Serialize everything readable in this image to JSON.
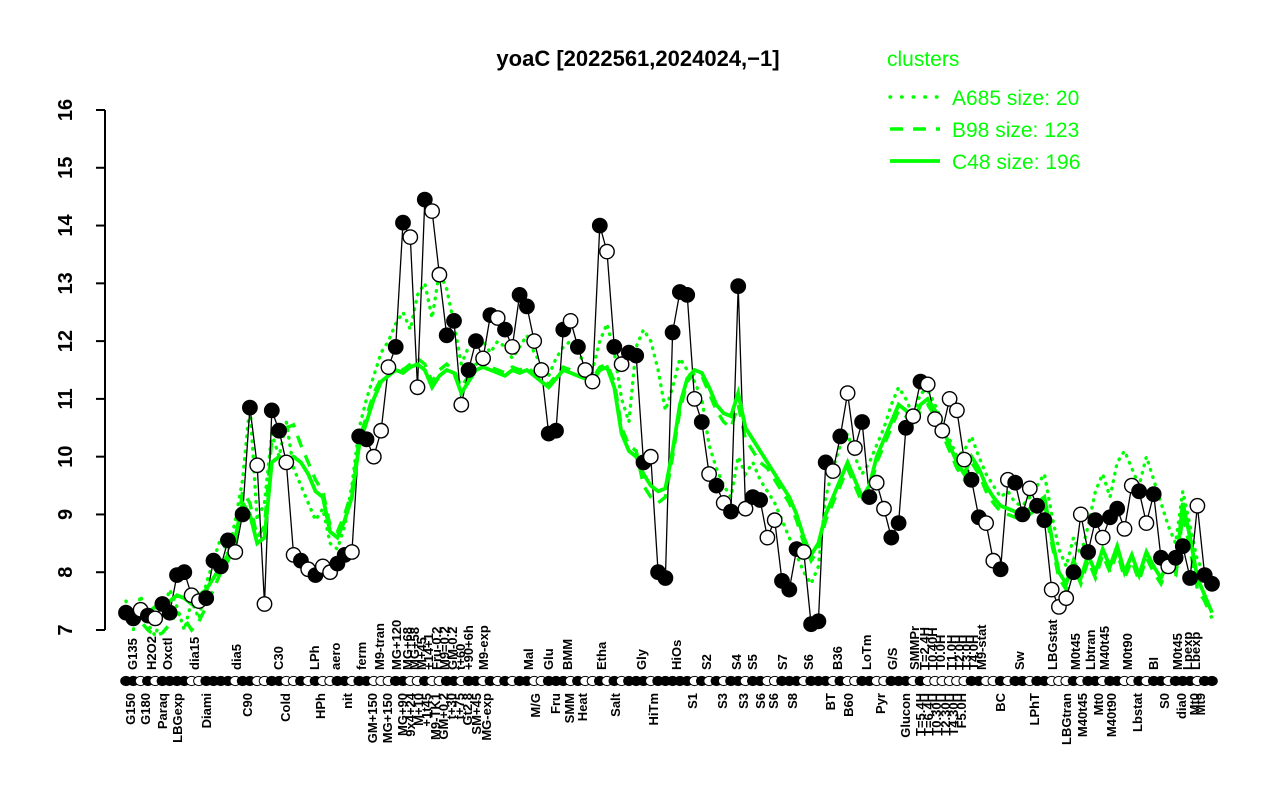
{
  "accent_color": "#00FF00",
  "foreground_color": "#000000",
  "chart_data": {
    "type": "line",
    "title": "yoaC [2022561,2024024,−1]",
    "ylim": [
      7,
      16
    ],
    "y_ticks": [
      7,
      8,
      9,
      10,
      11,
      12,
      13,
      14,
      15,
      16
    ],
    "grid": "off",
    "legend": {
      "title": "clusters",
      "position": "top-right",
      "color": "#00FF00",
      "entries": [
        {
          "label": "A685 size: 20",
          "style": "dotted"
        },
        {
          "label": "B98 size: 123",
          "style": "dashed"
        },
        {
          "label": "C48 size: 196",
          "style": "solid"
        }
      ]
    },
    "series": [
      {
        "name": "profile",
        "color": "#000000",
        "style": "line-with-markers",
        "marker_legend": "f=filled circle, o=open circle",
        "markers": [
          "ffofoff",
          "ffoof",
          "fffo",
          "ffooffoo",
          "fofooffo",
          "ffoo",
          "offo",
          "ofooff",
          "offo",
          "fofo",
          "ffoo",
          "ff",
          "fofo",
          "ofo",
          "foff",
          "foff",
          "fff",
          "ofofo",
          "f",
          "f",
          "offo",
          "offfo",
          "ff",
          "fofo",
          "off",
          "ooff",
          "fofo",
          "oooo",
          "offo",
          "of",
          "offo",
          "f",
          "f",
          "ooo",
          "foff",
          "offo",
          "ofof",
          "fof",
          "f",
          "f",
          "o",
          "f",
          "f"
        ],
        "values": [
          7.3,
          7.2,
          7.35,
          7.25,
          7.2,
          7.45,
          7.3,
          7.95,
          8.0,
          7.6,
          7.5,
          7.55,
          8.2,
          8.1,
          8.55,
          8.35,
          9.0,
          10.85,
          9.85,
          7.45,
          10.8,
          10.45,
          9.9,
          8.3,
          8.2,
          8.05,
          7.95,
          8.1,
          8.0,
          8.15,
          8.3,
          8.35,
          10.35,
          10.3,
          10.0,
          10.45,
          11.55,
          11.9,
          14.05,
          13.8,
          11.2,
          14.45,
          14.25,
          13.15,
          12.1,
          12.35,
          10.9,
          11.5,
          12.0,
          11.7,
          12.45,
          12.4,
          12.2,
          11.9,
          12.8,
          12.6,
          12.0,
          11.5,
          10.4,
          10.45,
          12.2,
          12.35,
          11.9,
          11.5,
          11.3,
          14.0,
          13.55,
          11.9,
          11.6,
          11.8,
          11.75,
          9.9,
          10.0,
          8.0,
          7.9,
          12.15,
          12.85,
          12.8,
          11.0,
          10.6,
          9.7,
          9.5,
          9.2,
          9.05,
          12.95,
          9.1,
          9.3,
          9.25,
          8.6,
          8.9,
          7.85,
          7.7,
          8.4,
          8.35,
          7.1,
          7.15,
          9.9,
          9.75,
          10.35,
          11.1,
          10.15,
          10.6,
          9.3,
          9.55,
          9.1,
          8.6,
          8.85,
          10.5,
          10.7,
          11.3,
          11.25,
          10.65,
          10.45,
          11.0,
          10.8,
          9.95,
          9.6,
          8.95,
          8.85,
          8.2,
          8.05,
          9.6,
          9.55,
          9.0,
          9.45,
          9.15,
          8.9,
          7.7,
          7.4,
          7.55,
          8.0,
          9.0,
          8.35,
          8.9,
          8.6,
          8.95,
          9.1,
          8.75,
          9.5,
          9.4,
          8.85,
          9.35,
          8.25,
          8.1,
          8.25,
          8.45,
          7.9,
          9.15,
          7.95,
          7.8
        ]
      },
      {
        "name": "A685",
        "color": "#00FF00",
        "style": "dotted",
        "values": [
          7.5,
          7.0,
          7.6,
          7.1,
          6.9,
          7.3,
          7.7,
          7.4,
          7.0,
          7.5,
          7.2,
          7.8,
          8.2,
          8.6,
          8.3,
          8.9,
          9.6,
          10.9,
          8.9,
          9.2,
          10.4,
          10.0,
          10.6,
          9.8,
          9.5,
          9.2,
          8.9,
          9.1,
          8.5,
          8.4,
          8.8,
          9.5,
          10.5,
          11.0,
          11.4,
          11.8,
          12.0,
          12.3,
          12.5,
          12.2,
          12.8,
          13.0,
          12.4,
          13.2,
          12.9,
          12.3,
          11.6,
          11.9,
          12.1,
          12.0,
          11.8,
          12.0,
          11.9,
          11.7,
          11.9,
          12.1,
          11.8,
          11.6,
          11.4,
          11.7,
          11.9,
          12.0,
          11.8,
          11.6,
          11.5,
          12.0,
          12.3,
          11.8,
          11.0,
          10.6,
          11.9,
          12.2,
          12.0,
          11.5,
          10.8,
          11.2,
          11.7,
          11.5,
          11.3,
          11.0,
          10.2,
          9.8,
          9.5,
          9.3,
          10.0,
          9.7,
          9.9,
          9.6,
          9.4,
          9.2,
          8.9,
          8.6,
          8.3,
          8.0,
          7.8,
          8.1,
          9.3,
          9.8,
          10.2,
          10.4,
          10.0,
          9.7,
          9.9,
          10.2,
          10.5,
          10.9,
          11.2,
          11.0,
          10.7,
          11.1,
          11.15,
          10.9,
          10.6,
          10.3,
          10.0,
          10.1,
          10.35,
          10.0,
          9.7,
          9.5,
          9.3,
          9.4,
          9.2,
          9.15,
          9.3,
          9.5,
          9.7,
          9.0,
          8.4,
          8.1,
          8.6,
          8.3,
          8.8,
          9.4,
          9.7,
          9.3,
          9.9,
          10.1,
          9.8,
          9.5,
          10.0,
          9.6,
          9.2,
          8.8,
          8.5,
          9.4,
          8.8,
          8.2,
          8.0,
          7.8
        ]
      },
      {
        "name": "B98",
        "color": "#00FF00",
        "style": "dashed",
        "values": [
          7.2,
          7.1,
          7.15,
          7.0,
          6.9,
          6.95,
          7.1,
          7.3,
          7.2,
          7.0,
          7.15,
          7.4,
          7.7,
          8.0,
          8.2,
          8.5,
          9.4,
          9.2,
          8.6,
          8.8,
          10.3,
          10.6,
          10.5,
          10.55,
          10.2,
          9.9,
          9.6,
          9.4,
          8.8,
          8.7,
          9.0,
          9.4,
          10.3,
          10.7,
          11.1,
          11.35,
          11.5,
          11.6,
          11.5,
          11.6,
          11.7,
          11.6,
          11.3,
          11.5,
          11.6,
          11.5,
          11.2,
          11.4,
          11.6,
          11.65,
          11.55,
          11.5,
          11.45,
          11.55,
          11.5,
          11.55,
          11.45,
          11.35,
          11.25,
          11.4,
          11.55,
          11.5,
          11.45,
          11.4,
          11.35,
          11.55,
          11.6,
          11.3,
          10.5,
          10.2,
          10.1,
          9.5,
          9.3,
          9.2,
          9.3,
          10.0,
          10.8,
          11.3,
          11.45,
          11.4,
          11.1,
          10.8,
          10.6,
          10.5,
          10.9,
          10.3,
          10.1,
          9.9,
          9.8,
          9.6,
          9.4,
          9.2,
          8.9,
          8.5,
          8.2,
          8.4,
          8.9,
          9.2,
          9.5,
          9.8,
          9.5,
          9.2,
          9.4,
          9.9,
          10.2,
          10.5,
          10.8,
          10.7,
          10.5,
          10.8,
          10.9,
          10.7,
          10.4,
          10.1,
          9.8,
          9.6,
          9.9,
          9.7,
          9.4,
          9.2,
          9.05,
          9.0,
          8.95,
          8.9,
          9.0,
          9.1,
          9.2,
          8.5,
          7.9,
          7.7,
          8.1,
          7.8,
          8.2,
          7.9,
          8.3,
          8.0,
          8.35,
          7.9,
          8.2,
          7.85,
          8.25,
          8.0,
          7.8,
          8.1,
          7.9,
          9.0,
          8.4,
          7.7,
          7.5,
          7.2
        ]
      },
      {
        "name": "C48",
        "color": "#00FF00",
        "style": "solid",
        "values": [
          7.4,
          7.3,
          7.35,
          7.3,
          7.4,
          7.35,
          7.5,
          7.6,
          7.55,
          7.45,
          7.6,
          7.7,
          7.9,
          8.1,
          8.3,
          8.6,
          9.2,
          9.0,
          8.5,
          8.6,
          9.9,
          10.0,
          9.95,
          10.0,
          9.9,
          9.7,
          9.4,
          9.3,
          8.7,
          8.6,
          8.9,
          9.3,
          10.2,
          10.6,
          11.0,
          11.3,
          11.4,
          11.5,
          11.45,
          11.55,
          11.6,
          11.5,
          11.2,
          11.4,
          11.5,
          11.45,
          11.1,
          11.3,
          11.5,
          11.55,
          11.5,
          11.45,
          11.4,
          11.5,
          11.45,
          11.5,
          11.4,
          11.3,
          11.2,
          11.35,
          11.5,
          11.45,
          11.4,
          11.35,
          11.3,
          11.5,
          11.55,
          11.2,
          10.4,
          10.1,
          10.0,
          9.7,
          9.5,
          9.4,
          9.45,
          10.1,
          10.9,
          11.35,
          11.5,
          11.45,
          11.2,
          10.9,
          10.75,
          10.7,
          11.1,
          10.5,
          10.3,
          10.1,
          9.9,
          9.7,
          9.5,
          9.3,
          9.0,
          8.6,
          8.3,
          8.5,
          9.0,
          9.3,
          9.6,
          9.9,
          9.6,
          9.3,
          9.5,
          10.0,
          10.3,
          10.6,
          10.9,
          10.8,
          10.6,
          10.9,
          11.0,
          10.8,
          10.5,
          10.2,
          9.9,
          9.7,
          10.0,
          9.8,
          9.5,
          9.3,
          9.15,
          9.1,
          9.05,
          9.0,
          9.1,
          9.2,
          9.3,
          8.6,
          8.0,
          7.8,
          8.2,
          7.9,
          8.3,
          8.0,
          8.4,
          8.1,
          8.45,
          8.0,
          8.3,
          7.95,
          8.35,
          8.1,
          7.9,
          8.2,
          8.0,
          9.2,
          8.6,
          7.9,
          7.6,
          7.3
        ]
      }
    ],
    "x_axis": {
      "note": "condition labels in two staggered rows, rotated 90 deg; dense clusters overlap in source",
      "top_labels": [
        [
          137,
          "G135"
        ],
        [
          156,
          "H2O2"
        ],
        [
          172,
          "Oxctl"
        ],
        [
          199,
          "dia15"
        ],
        [
          241,
          "dia5"
        ],
        [
          283,
          "C30"
        ],
        [
          319,
          "LPh"
        ],
        [
          340,
          "aero"
        ],
        [
          366,
          "ferm"
        ],
        [
          384,
          "M9-tran"
        ],
        [
          401,
          "MG+120"
        ],
        [
          412,
          "MG+68"
        ],
        [
          419,
          "MG+58"
        ],
        [
          426,
          "M+45"
        ],
        [
          433,
          "+14+1"
        ],
        [
          441,
          "Fru-0.2"
        ],
        [
          449,
          "M9=0.2"
        ],
        [
          457,
          "GM-0.2"
        ],
        [
          465,
          "t+60"
        ],
        [
          473,
          "+90+6h"
        ],
        [
          488,
          "M9-exp"
        ],
        [
          533,
          "Mal"
        ],
        [
          553,
          "Glu"
        ],
        [
          572,
          "BMM"
        ],
        [
          606,
          "Etha"
        ],
        [
          646,
          "Gly"
        ],
        [
          681,
          "HiOs"
        ],
        [
          711,
          "S2"
        ],
        [
          741,
          "S4"
        ],
        [
          757,
          "S5"
        ],
        [
          787,
          "S7"
        ],
        [
          813,
          "S6"
        ],
        [
          842,
          "B36"
        ],
        [
          871,
          "LoTm"
        ],
        [
          897,
          "G/S"
        ],
        [
          919,
          "SMMPr"
        ],
        [
          929,
          "T=2.4H"
        ],
        [
          937,
          "T0.40H"
        ],
        [
          945,
          "T0.0H"
        ],
        [
          956,
          "T1.0H"
        ],
        [
          964,
          "T2.0H"
        ],
        [
          971,
          "T3.0H"
        ],
        [
          978,
          "T4.0H"
        ],
        [
          986,
          "M9-stat"
        ],
        [
          1024,
          "Sw"
        ],
        [
          1057,
          "LBGstat"
        ],
        [
          1080,
          "M0t45"
        ],
        [
          1095,
          "Lbtran"
        ],
        [
          1109,
          "M40t45"
        ],
        [
          1132,
          "M0t90"
        ],
        [
          1158,
          "BI"
        ],
        [
          1182,
          "M0t45"
        ],
        [
          1192,
          "Lpexp"
        ],
        [
          1200,
          "Lbexp"
        ]
      ],
      "bottom_labels": [
        [
          135,
          "G150"
        ],
        [
          150,
          "G180"
        ],
        [
          167,
          "Paraq"
        ],
        [
          182,
          "LBGexp"
        ],
        [
          211,
          "Diami"
        ],
        [
          252,
          "C90"
        ],
        [
          290,
          "Cold"
        ],
        [
          325,
          "HPh"
        ],
        [
          352,
          "nit"
        ],
        [
          377,
          "GM+150"
        ],
        [
          392,
          "MG+150"
        ],
        [
          407,
          "MG+90"
        ],
        [
          415,
          "9x4+24"
        ],
        [
          423,
          "M+10"
        ],
        [
          431,
          "+1t45"
        ],
        [
          440,
          "M9-TK1"
        ],
        [
          448,
          "GM+0.2"
        ],
        [
          456,
          "t+30"
        ],
        [
          464,
          "t+75"
        ],
        [
          472,
          "Gt2.8"
        ],
        [
          481,
          "SM+45"
        ],
        [
          491,
          "MG-exp"
        ],
        [
          540,
          "M/G"
        ],
        [
          560,
          "Fru"
        ],
        [
          574,
          "SMM"
        ],
        [
          587,
          "Heat"
        ],
        [
          620,
          "Salt"
        ],
        [
          658,
          "HiTm"
        ],
        [
          697,
          "S1"
        ],
        [
          727,
          "S3"
        ],
        [
          748,
          "S3"
        ],
        [
          765,
          "S6"
        ],
        [
          778,
          "S6"
        ],
        [
          797,
          "S8"
        ],
        [
          835,
          "BT"
        ],
        [
          853,
          "B60"
        ],
        [
          885,
          "Pyr"
        ],
        [
          910,
          "Glucon"
        ],
        [
          925,
          "T=5.4H"
        ],
        [
          933,
          "T=6.4H"
        ],
        [
          941,
          "T0.30H"
        ],
        [
          950,
          "T2.30H"
        ],
        [
          958,
          "T4.30H"
        ],
        [
          966,
          "F5.0H"
        ],
        [
          1005,
          "BC"
        ],
        [
          1039,
          "LPhT"
        ],
        [
          1071,
          "LBGtran"
        ],
        [
          1087,
          "M40t45"
        ],
        [
          1103,
          "Mt0"
        ],
        [
          1116,
          "M40t90"
        ],
        [
          1142,
          "Lbstat"
        ],
        [
          1169,
          "S0"
        ],
        [
          1186,
          "dia0"
        ],
        [
          1199,
          "Mt0"
        ],
        [
          1205,
          "Mt9"
        ]
      ]
    }
  }
}
